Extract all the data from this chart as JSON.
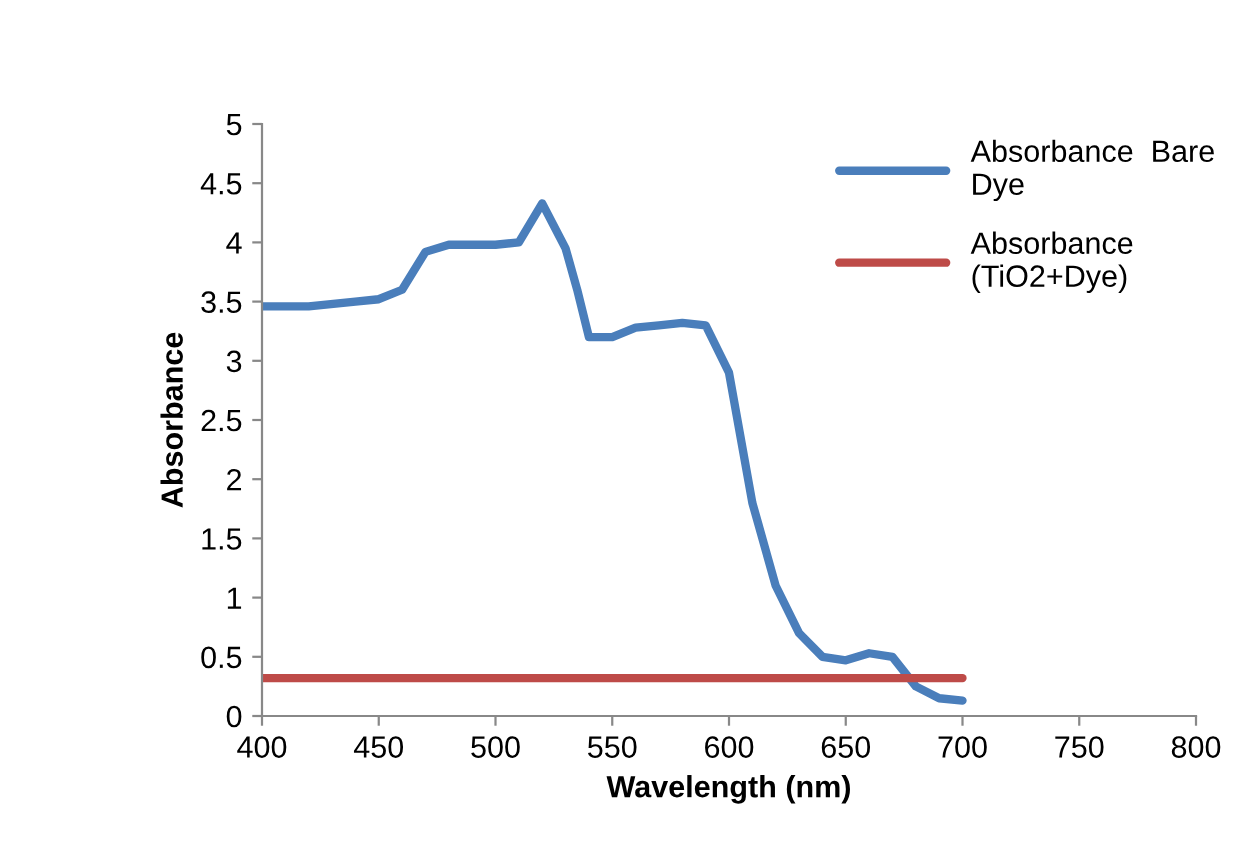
{
  "chart_data": {
    "type": "line",
    "xlabel": "Wavelength (nm)",
    "ylabel": "Absorbance",
    "xlim": [
      400,
      800
    ],
    "xticks": [
      400,
      450,
      500,
      550,
      600,
      650,
      700,
      750,
      800
    ],
    "ylim": [
      0,
      5
    ],
    "yticks": [
      0,
      0.5,
      1,
      1.5,
      2,
      2.5,
      3,
      3.5,
      4,
      4.5,
      5
    ],
    "grid": false,
    "legend": "top right",
    "marker": "none",
    "line_style": "solid",
    "series": [
      {
        "name": "Absorbance  Bare Dye",
        "color": "#4a7ebb",
        "x": [
          400,
          420,
          440,
          450,
          460,
          470,
          480,
          490,
          500,
          510,
          520,
          530,
          535,
          540,
          550,
          560,
          570,
          580,
          590,
          600,
          610,
          620,
          630,
          640,
          650,
          660,
          670,
          680,
          690,
          700
        ],
        "values": [
          3.46,
          3.46,
          3.5,
          3.52,
          3.6,
          3.92,
          3.98,
          3.98,
          3.98,
          4.0,
          4.33,
          3.95,
          3.6,
          3.2,
          3.2,
          3.28,
          3.3,
          3.32,
          3.3,
          2.9,
          1.8,
          1.1,
          0.7,
          0.5,
          0.47,
          0.53,
          0.5,
          0.25,
          0.15,
          0.13
        ]
      },
      {
        "name": "Absorbance (TiO2+Dye)",
        "color": "#be4b48",
        "x": [
          400,
          700
        ],
        "values": [
          0.32,
          0.32
        ]
      }
    ]
  }
}
